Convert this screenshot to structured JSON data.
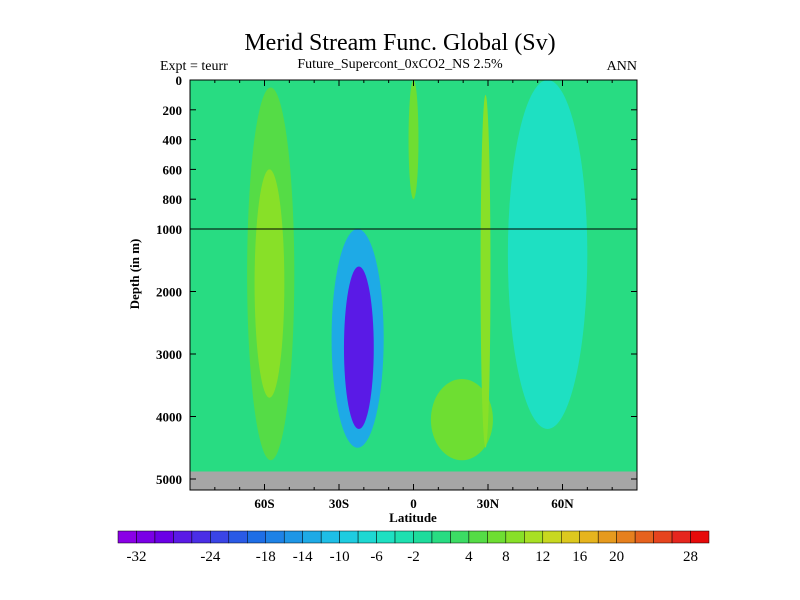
{
  "chart_data": {
    "type": "heatmap",
    "title": "Merid Stream Func. Global (Sv)",
    "left_text": "Expt = teurr",
    "subtitle": "Future_Supercont_0xCO2_NS 2.5%",
    "right_text": "ANN",
    "xlabel": "Latitude",
    "ylabel": "Depth (in m)",
    "xlim": [
      -90,
      90
    ],
    "x_ticks": [
      {
        "value": -60,
        "label": "60S"
      },
      {
        "value": -30,
        "label": "30S"
      },
      {
        "value": 0,
        "label": "0"
      },
      {
        "value": 30,
        "label": "30N"
      },
      {
        "value": 60,
        "label": "60N"
      }
    ],
    "y_ticks": [
      {
        "value": 0,
        "label": "0"
      },
      {
        "value": 200,
        "label": "200"
      },
      {
        "value": 400,
        "label": "400"
      },
      {
        "value": 600,
        "label": "600"
      },
      {
        "value": 800,
        "label": "800"
      },
      {
        "value": 1000,
        "label": "1000"
      },
      {
        "value": 2000,
        "label": "2000"
      },
      {
        "value": 3000,
        "label": "3000"
      },
      {
        "value": 4000,
        "label": "4000"
      },
      {
        "value": 5000,
        "label": "5000"
      }
    ],
    "y_axis_note": "piecewise linear: 0-1000 m and 1000-5000 m",
    "ocean_floor_depth": 4880,
    "background_value": 0,
    "features": [
      {
        "name": "southern-positive-cell",
        "lat_range": [
          -67,
          -48
        ],
        "depth_range": [
          50,
          4700
        ],
        "value": 4
      },
      {
        "name": "southern-positive-core",
        "lat_range": [
          -64,
          -52
        ],
        "depth_range": [
          600,
          3700
        ],
        "value": 8
      },
      {
        "name": "deep-negative-cell",
        "lat_range": [
          -33,
          -12
        ],
        "depth_range": [
          1000,
          4500
        ],
        "value": -14
      },
      {
        "name": "deep-negative-core",
        "lat_range": [
          -28,
          -16
        ],
        "depth_range": [
          1600,
          4200
        ],
        "value": -28
      },
      {
        "name": "northern-deep-positive-cell",
        "lat_range": [
          7,
          32
        ],
        "depth_range": [
          3400,
          4700
        ],
        "value": 6
      },
      {
        "name": "northern-upper-negative-cell",
        "lat_range": [
          38,
          70
        ],
        "depth_range": [
          0,
          4200
        ],
        "value": -6
      },
      {
        "name": "equatorial-positive-streak",
        "lat_range": [
          -2,
          2
        ],
        "depth_range": [
          0,
          800
        ],
        "value": 6
      },
      {
        "name": "tropical-positive-streak",
        "lat_range": [
          27,
          31
        ],
        "depth_range": [
          100,
          4500
        ],
        "value": 8
      }
    ],
    "colorbar": {
      "levels": [
        -32,
        -30,
        -28,
        -26,
        -24,
        -22,
        -20,
        -18,
        -16,
        -14,
        -12,
        -10,
        -8,
        -6,
        -4,
        -2,
        0,
        2,
        4,
        6,
        8,
        10,
        12,
        14,
        16,
        18,
        20,
        22,
        24,
        26,
        28
      ],
      "labels": [
        "-32",
        "-24",
        "-18",
        "-14",
        "-10",
        "-6",
        "-2",
        "4",
        "8",
        "12",
        "16",
        "20",
        "28"
      ],
      "colors": [
        "#8a00e6",
        "#7a00e6",
        "#6a00e6",
        "#5a1ae6",
        "#4a2ee6",
        "#3a44e6",
        "#2a5ae6",
        "#1e6ee6",
        "#1e82e6",
        "#1e96e6",
        "#1eaae6",
        "#1ebee6",
        "#1ecce0",
        "#1ed8d2",
        "#1ee0c2",
        "#1ee0b0",
        "#1edc9c",
        "#28dc82",
        "#3cdc64",
        "#55dc46",
        "#6ede32",
        "#88e028",
        "#a8e024",
        "#c8d820",
        "#dcc81e",
        "#e6b41e",
        "#e69a1e",
        "#e6801e",
        "#e6621e",
        "#e6441e",
        "#e6261e",
        "#e60a0a"
      ]
    }
  }
}
